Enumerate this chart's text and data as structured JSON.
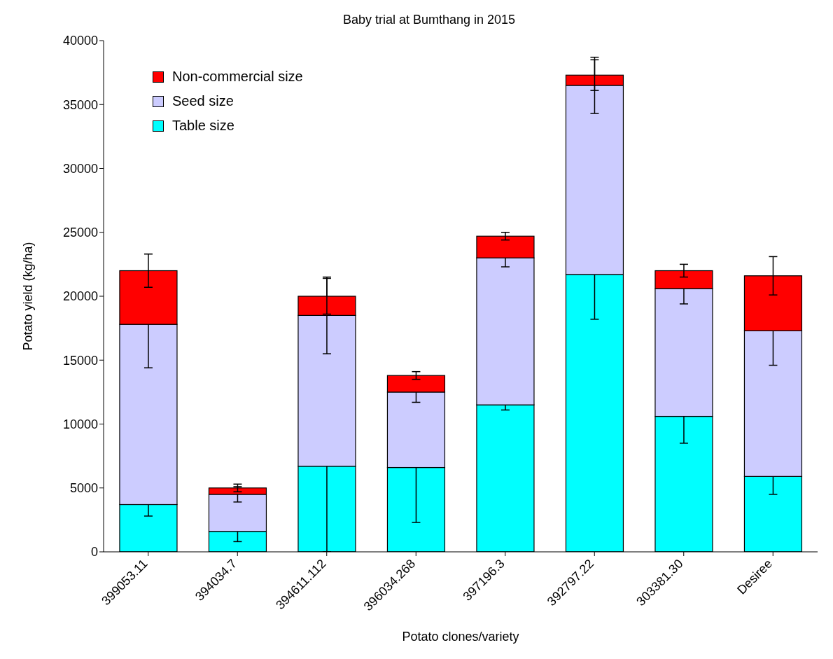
{
  "chart_data": {
    "type": "bar",
    "title": "Baby trial at Bumthang in 2015",
    "xlabel": "Potato clones/variety",
    "ylabel": "Potato yield (kg/ha)",
    "categories": [
      "399053.11",
      "394034.7",
      "394611.112",
      "396034.268",
      "397196.3",
      "392797.22",
      "303381.30",
      "Desiree"
    ],
    "stacked": true,
    "series": [
      {
        "name": "Table size",
        "color": "#00ffff",
        "values": [
          3700,
          1600,
          6700,
          6600,
          11500,
          21700,
          10600,
          5900
        ],
        "errors": [
          900,
          800,
          6700,
          4300,
          400,
          3500,
          2100,
          1400
        ]
      },
      {
        "name": "Seed size",
        "color": "#ccccff",
        "values": [
          14100,
          2900,
          11800,
          5900,
          11500,
          14800,
          10000,
          11400
        ],
        "errors": [
          3400,
          600,
          3000,
          800,
          700,
          2200,
          1200,
          2700
        ]
      },
      {
        "name": "Non-commercial size",
        "color": "#ff0000",
        "values": [
          4200,
          500,
          1500,
          1300,
          1700,
          800,
          1400,
          4300
        ],
        "errors": [
          1300,
          300,
          1400,
          300,
          300,
          1200,
          500,
          1500
        ]
      }
    ],
    "ylim": [
      0,
      40000
    ],
    "yticks": [
      0,
      5000,
      10000,
      15000,
      20000,
      25000,
      30000,
      35000,
      40000
    ],
    "grid": false,
    "legend": "top left"
  }
}
